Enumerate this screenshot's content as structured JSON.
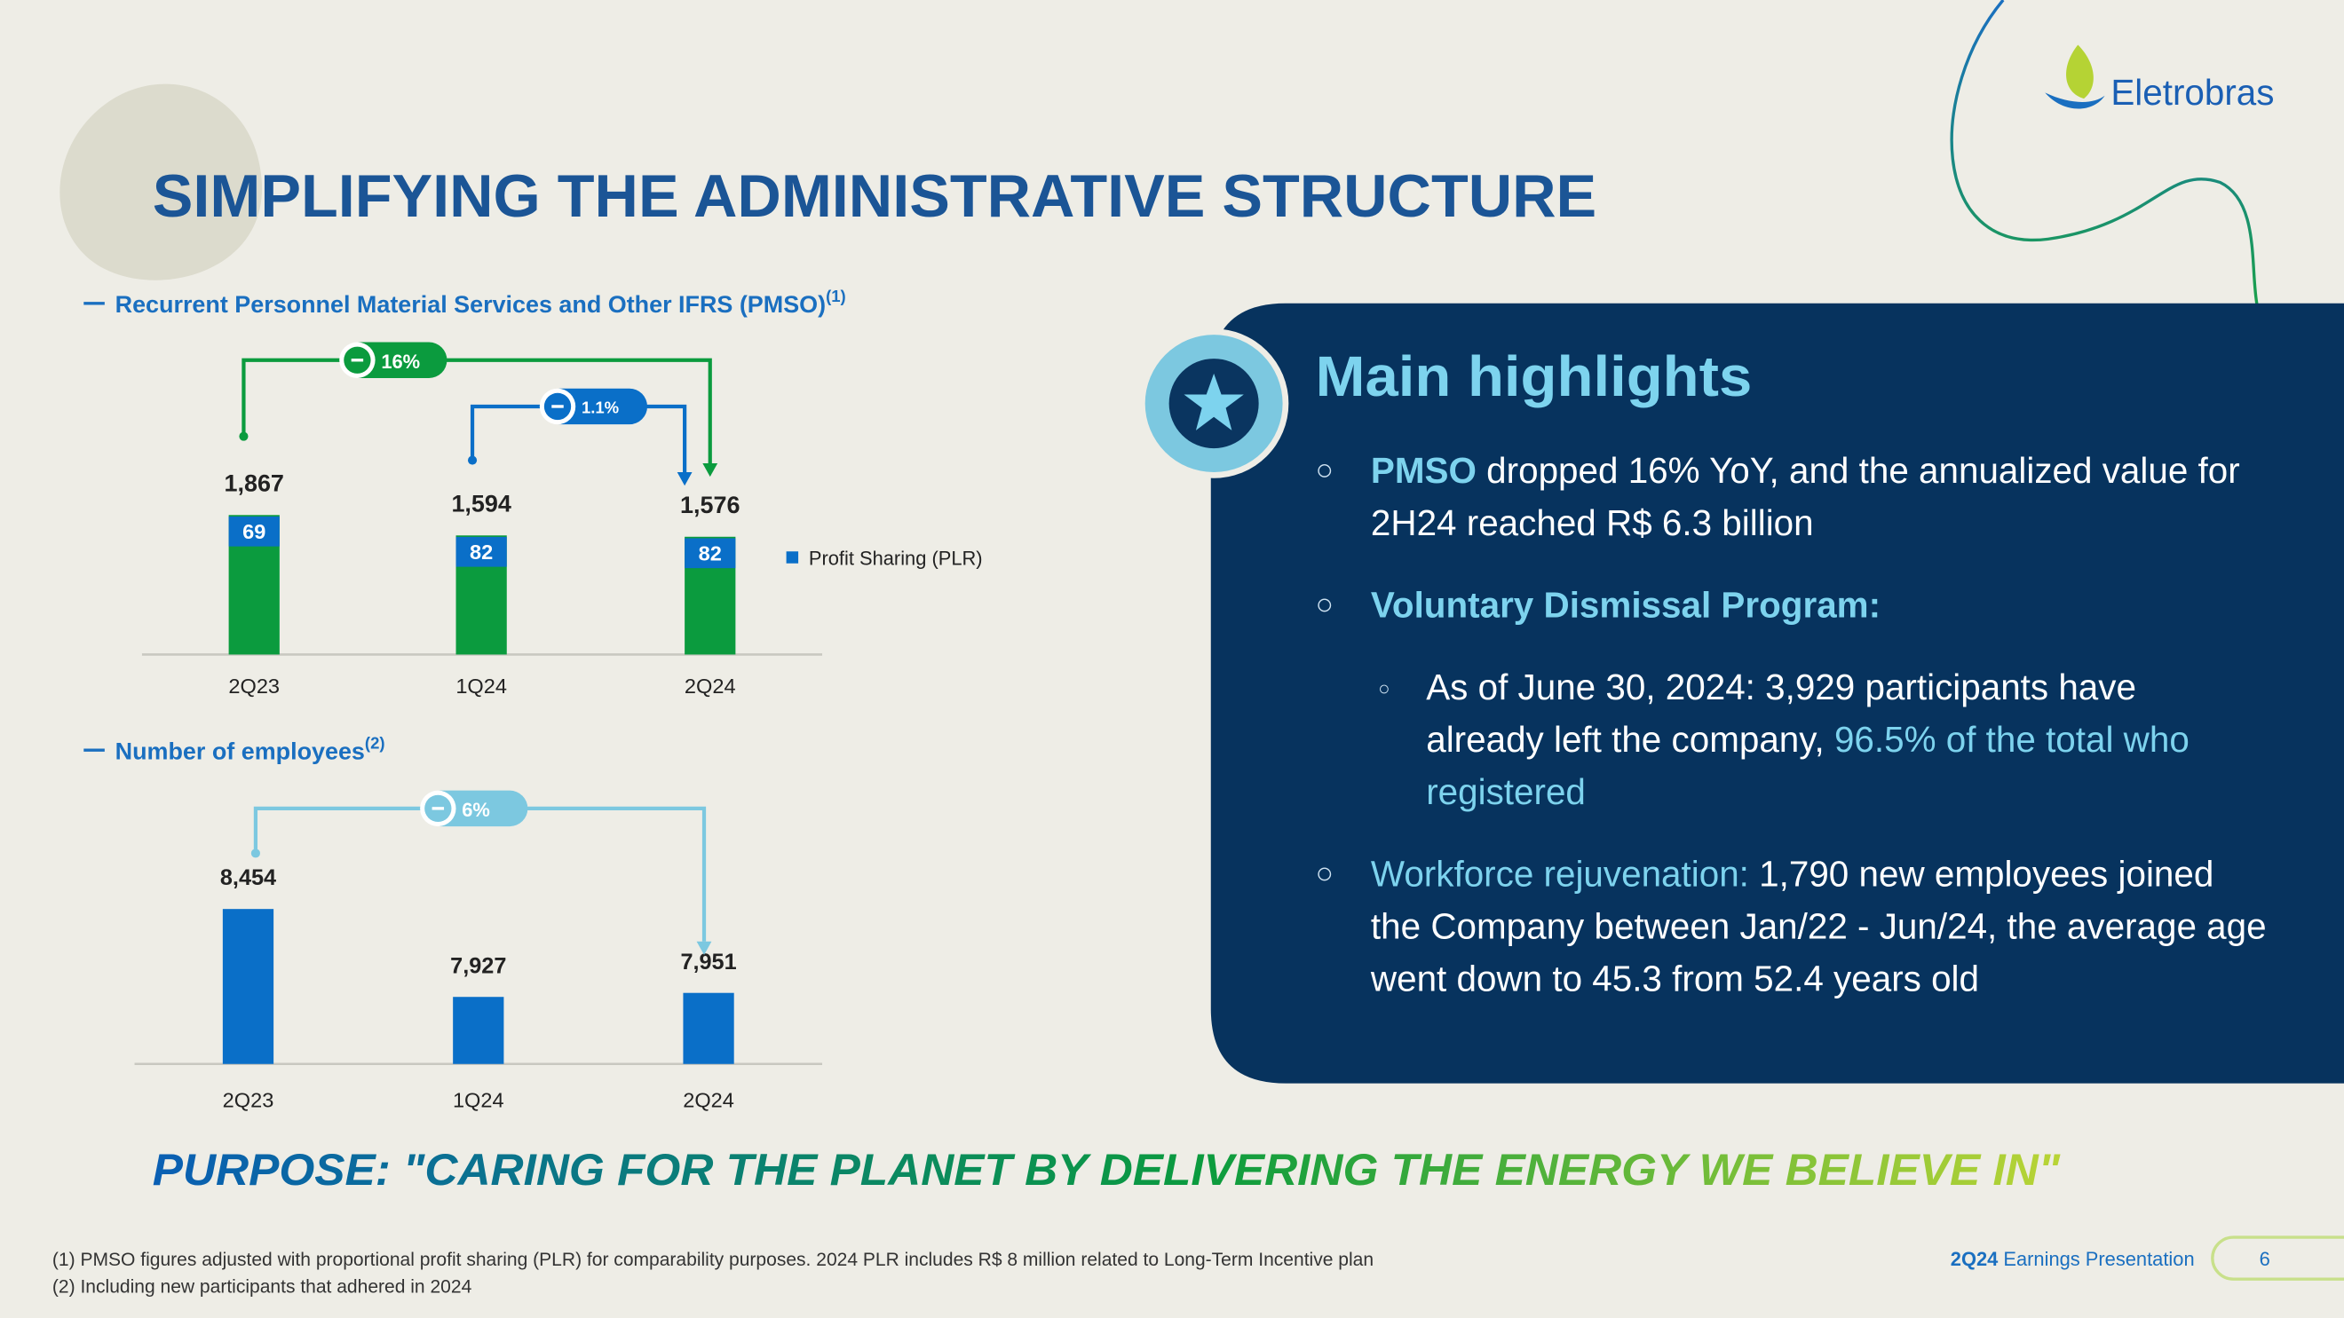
{
  "header": {
    "title": "SIMPLIFYING THE ADMINISTRATIVE STRUCTURE",
    "logo": "Eletrobras"
  },
  "chart_data": [
    {
      "type": "bar",
      "title": "Recurrent Personnel Material Services and Other IFRS (PMSO)",
      "title_note": "(1)",
      "categories": [
        "2Q23",
        "1Q24",
        "2Q24"
      ],
      "values": [
        1867,
        1594,
        1576
      ],
      "value_labels": [
        "1,867",
        "1,594",
        "1,576"
      ],
      "color": "#0b9b3e",
      "ylim": [
        0,
        2000
      ],
      "series": [
        {
          "name": "Profit Sharing (PLR)",
          "color": "#0a6fc8",
          "values": [
            69,
            82,
            82
          ]
        }
      ],
      "annotations": [
        "16%",
        "1.1%"
      ]
    },
    {
      "type": "bar",
      "title": "Number of employees",
      "title_note": "(2)",
      "categories": [
        "2Q23",
        "1Q24",
        "2Q24"
      ],
      "values": [
        8454,
        7927,
        7951
      ],
      "value_labels": [
        "8,454",
        "7,927",
        "7,951"
      ],
      "color": "#0a6fc8",
      "ylim": [
        7525,
        8600
      ],
      "annotations": [
        "6%"
      ]
    }
  ],
  "highlights": {
    "title": "Main highlights",
    "items": [
      {
        "level": 1,
        "parts": [
          {
            "text": "PMSO",
            "accent": true,
            "bold": true
          },
          {
            "text": " dropped 16% YoY, and the annualized value for 2H24 reached R$ 6.3 billion"
          }
        ]
      },
      {
        "level": 1,
        "parts": [
          {
            "text": "Voluntary Dismissal Program:",
            "accent": true,
            "bold": true
          }
        ]
      },
      {
        "level": 2,
        "parts": [
          {
            "text": "As of June 30, 2024: 3,929 participants have already left the company, "
          },
          {
            "text": "96.5% of the total who registered",
            "accent": true
          }
        ]
      },
      {
        "level": 1,
        "parts": [
          {
            "text": "Workforce rejuvenation:",
            "accent": true
          },
          {
            "text": " 1,790 new employees joined the Company between Jan/22 - Jun/24, the average age went down to 45.3 from 52.4 years old"
          }
        ]
      }
    ]
  },
  "purpose": "PURPOSE: \"CARING FOR THE PLANET BY DELIVERING THE ENERGY WE BELIEVE IN\"",
  "footnotes": [
    "(1) PMSO figures adjusted with proportional profit sharing (PLR) for comparability purposes. 2024 PLR includes R$ 8 million related to Long-Term Incentive plan",
    "(2) Including new participants that adhered in 2024"
  ],
  "footer": {
    "period": "2Q24",
    "label": "Earnings Presentation",
    "page": "6"
  }
}
